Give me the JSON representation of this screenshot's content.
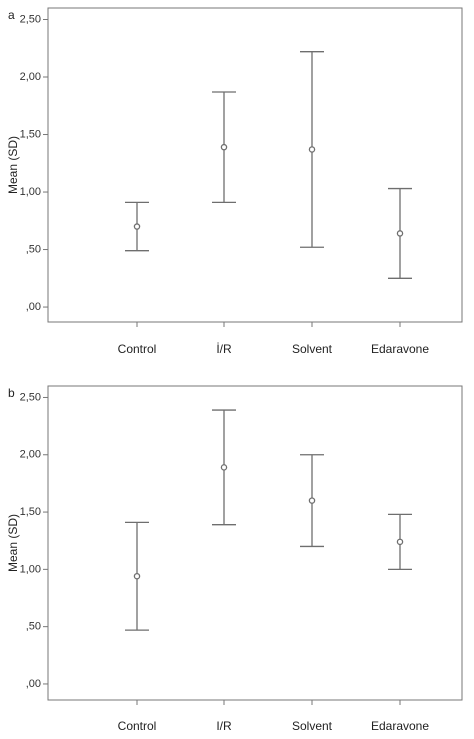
{
  "chart_data": [
    {
      "type": "errorbar",
      "panel_label": "a",
      "y_label": "Mean (SD)",
      "categories": [
        "Control",
        "İ/R",
        "Solvent",
        "Edaravone"
      ],
      "values": [
        0.7,
        1.39,
        1.37,
        0.64
      ],
      "errors": [
        0.21,
        0.48,
        0.85,
        0.39
      ],
      "color": "#6e6e6e",
      "ylim": [
        -0.13,
        2.6
      ],
      "yticks": [
        {
          "value": 0,
          "label": ",00"
        },
        {
          "value": 0.5,
          "label": ",50"
        },
        {
          "value": 1,
          "label": "1,00"
        },
        {
          "value": 1.5,
          "label": "1,50"
        },
        {
          "value": 2,
          "label": "2,00"
        },
        {
          "value": 2.5,
          "label": "2,50"
        }
      ]
    },
    {
      "type": "errorbar",
      "panel_label": "b",
      "y_label": "Mean (SD)",
      "categories": [
        "Control",
        "I/R",
        "Solvent",
        "Edaravone"
      ],
      "values": [
        0.94,
        1.89,
        1.6,
        1.24
      ],
      "errors": [
        0.47,
        0.5,
        0.4,
        0.24
      ],
      "color": "#6e6e6e",
      "ylim": [
        -0.14,
        2.6
      ],
      "yticks": [
        {
          "value": 0,
          "label": ",00"
        },
        {
          "value": 0.5,
          "label": ",50"
        },
        {
          "value": 1,
          "label": "1,00"
        },
        {
          "value": 1.5,
          "label": "1,50"
        },
        {
          "value": 2,
          "label": "2,00"
        },
        {
          "value": 2.5,
          "label": "2,50"
        }
      ]
    }
  ]
}
